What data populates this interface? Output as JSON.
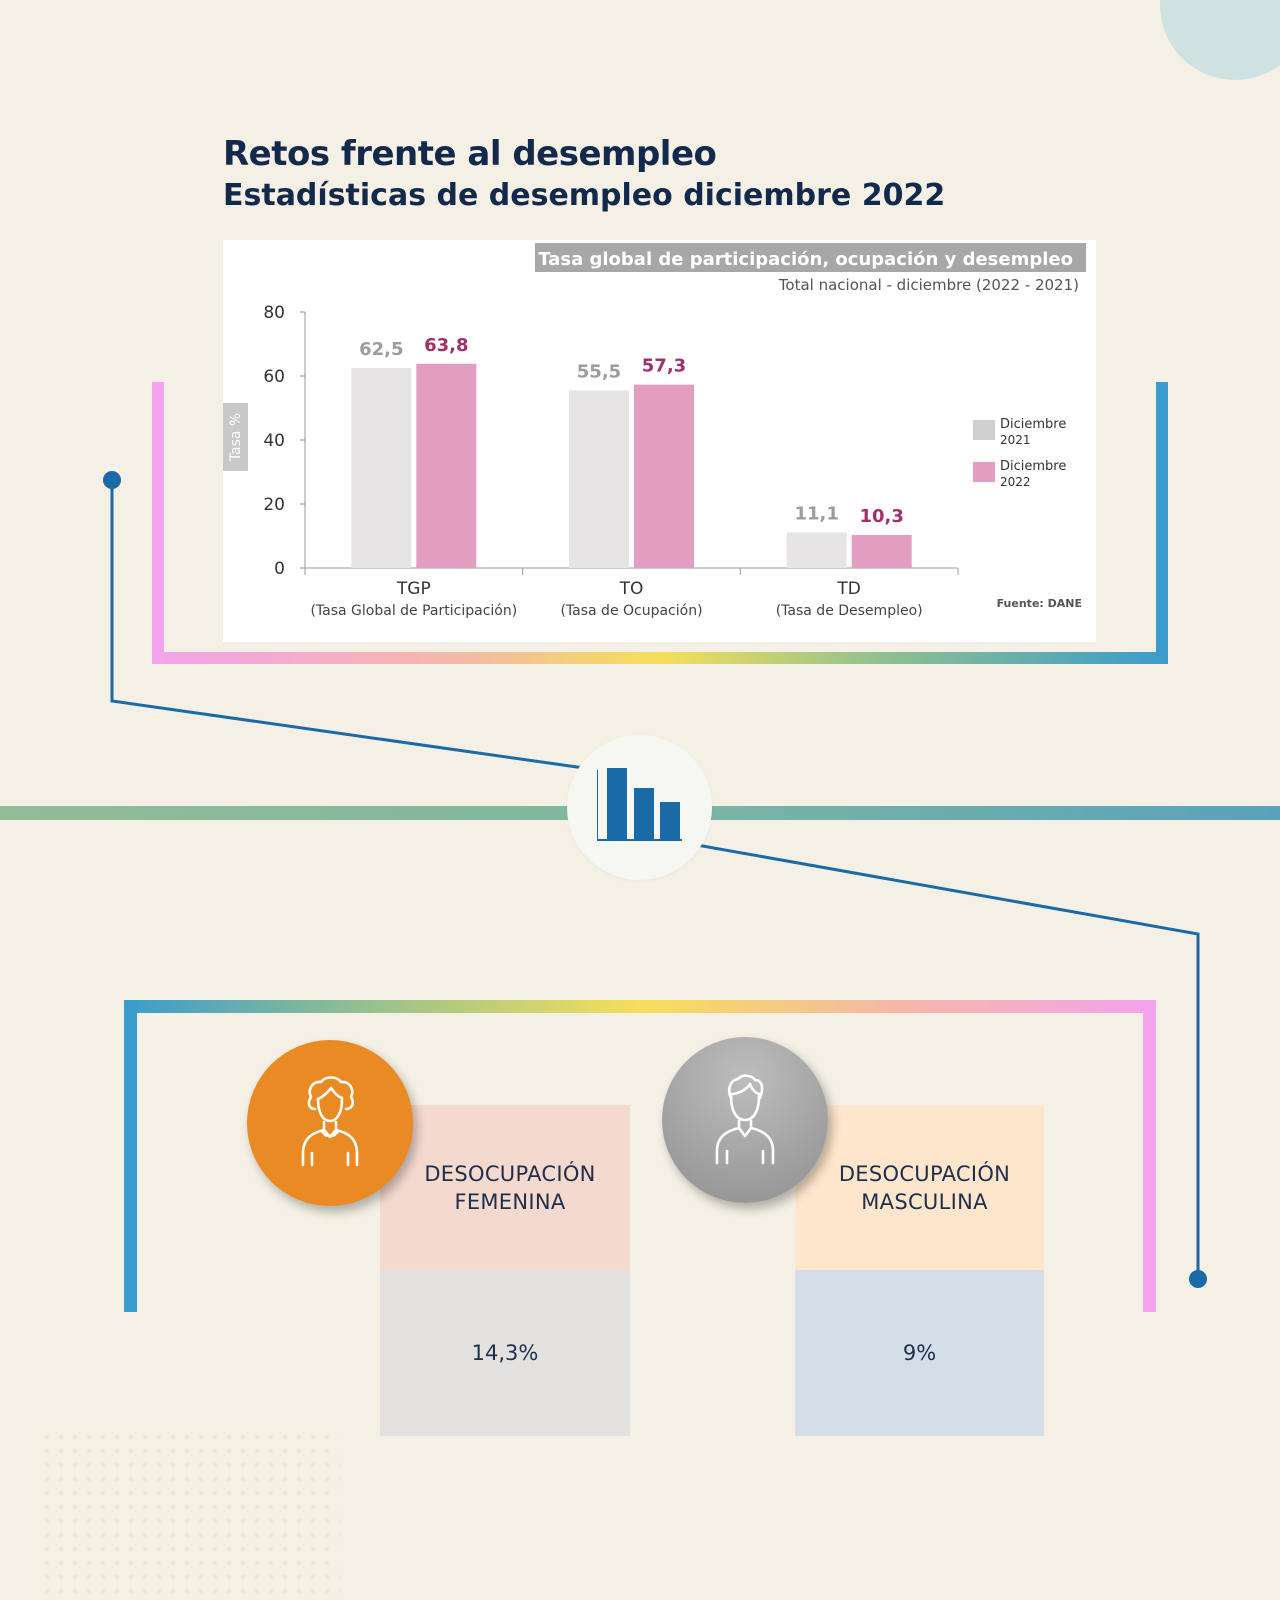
{
  "header": {
    "title": "Retos frente al desempleo",
    "subtitle": "Estadísticas de desempleo diciembre 2022"
  },
  "colors": {
    "background": "#f4f0e5",
    "series_2021": "#e6e4e4",
    "series_2022": "#e29dc0",
    "label_2022": "#a0306b",
    "connector_blue": "#1a6aa8",
    "female_accent": "#ea8a22"
  },
  "chart_data": {
    "type": "bar",
    "title": "Tasa global de participación, ocupación y desempleo",
    "subtitle": "Total nacional - diciembre (2022 - 2021)",
    "ylabel": "Tasa %",
    "ylim": [
      0,
      80
    ],
    "yticks": [
      "0",
      "20",
      "40",
      "60",
      "80"
    ],
    "categories": [
      "TGP",
      "TO",
      "TD"
    ],
    "category_descriptions": [
      "(Tasa Global de Participación)",
      "(Tasa de Ocupación)",
      "(Tasa de Desempleo)"
    ],
    "series": [
      {
        "name_line1": "Diciembre",
        "name_line2": "2021",
        "values": [
          62.5,
          55.5,
          11.1
        ],
        "labels": [
          "62,5",
          "55,5",
          "11,1"
        ],
        "color": "#e6e4e4"
      },
      {
        "name_line1": "Diciembre",
        "name_line2": "2022",
        "values": [
          63.8,
          57.3,
          10.3
        ],
        "labels": [
          "63,8",
          "57,3",
          "10,3"
        ],
        "color": "#e29dc0"
      }
    ],
    "source": "Fuente: DANE",
    "legend_position": "right",
    "grid": false
  },
  "cards": {
    "female": {
      "label_line1": "DESOCUPACIÓN",
      "label_line2": "FEMENINA",
      "value": "14,3%",
      "icon": "woman-icon"
    },
    "male": {
      "label_line1": "DESOCUPACIÓN",
      "label_line2": "MASCULINA",
      "value": "9%",
      "icon": "man-icon"
    }
  },
  "center_icon": "bar-chart-icon"
}
